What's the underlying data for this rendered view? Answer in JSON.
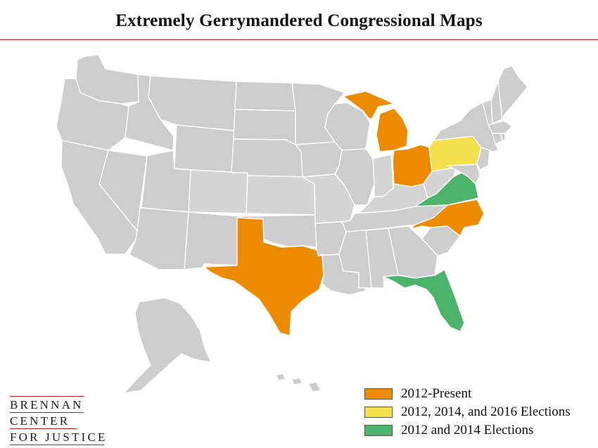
{
  "title": "Extremely Gerrymandered Congressional Maps",
  "colors": {
    "default_state": "#cdcdcd",
    "lighter_state": "#d4d4d2",
    "orange": "#ec8a00",
    "yellow": "#f4e04c",
    "green": "#4bb46a",
    "rule_red": "#c8161d"
  },
  "legend": [
    {
      "label": "2012-Present",
      "color": "#ec8a00"
    },
    {
      "label": "2012, 2014, and 2016 Elections",
      "color": "#f4e04c"
    },
    {
      "label": "2012 and 2014 Elections",
      "color": "#4bb46a"
    }
  ],
  "highlighted_states": {
    "2012-Present": [
      "Michigan",
      "Ohio",
      "North Carolina",
      "Texas"
    ],
    "2012, 2014, and 2016 Elections": [
      "Pennsylvania"
    ],
    "2012 and 2014 Elections": [
      "Virginia",
      "Florida"
    ]
  },
  "logo": {
    "line1": "BRENNAN",
    "line2": "CENTER",
    "line3": "FOR JUSTICE"
  }
}
